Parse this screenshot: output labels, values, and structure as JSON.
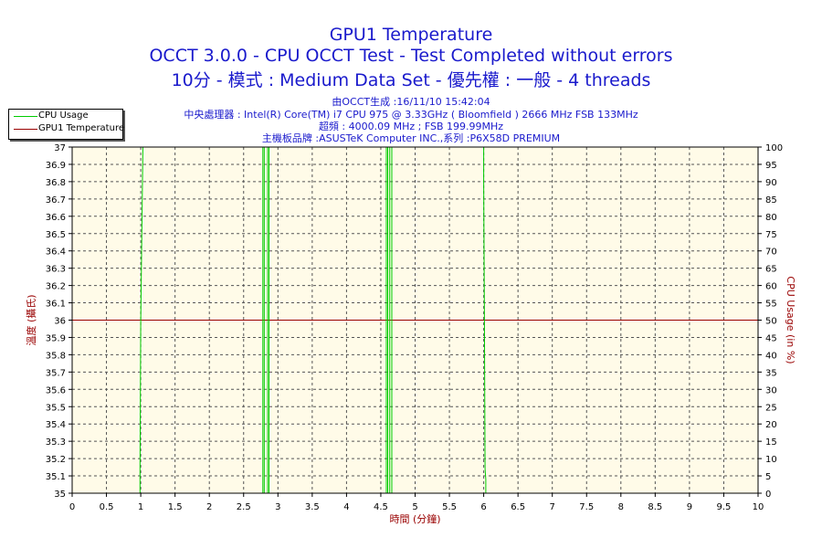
{
  "header": {
    "title": "GPU1 Temperature",
    "subtitle1": "OCCT 3.0.0 - CPU OCCT Test - Test Completed without errors",
    "subtitle2": "10分 - 模式 : Medium Data Set - 優先權 : 一般 - 4 threads",
    "info1": "由OCCT生成 :16/11/10 15:42:04",
    "info2": "中央處理器 : Intel(R) Core(TM) i7 CPU 975 @ 3.33GHz ( Bloomfield ) 2666 MHz FSB 133MHz",
    "info3": "超頻 : 4000.09 MHz ; FSB 199.99MHz",
    "info4": "主機板品牌 :ASUSTeK Computer INC.,系列 :P6X58D PREMIUM"
  },
  "legend": {
    "items": [
      {
        "label": "CPU Usage",
        "color": "#00cc00"
      },
      {
        "label": "GPU1 Temperature",
        "color": "#990000"
      }
    ]
  },
  "chart_data": {
    "type": "line",
    "xlabel": "時間 (分鐘)",
    "ylabel": "溫度 (攝氏)",
    "y2label": "CPU Usage (in %)",
    "xlim": [
      0,
      10
    ],
    "ylim": [
      35,
      37
    ],
    "y2lim": [
      0,
      100
    ],
    "x_ticks": [
      "0",
      "0.5",
      "1",
      "1.5",
      "2",
      "2.5",
      "3",
      "3.5",
      "4",
      "4.5",
      "5",
      "5.5",
      "6",
      "6.5",
      "7",
      "7.5",
      "8",
      "8.5",
      "9",
      "9.5",
      "10"
    ],
    "y_ticks": [
      "35",
      "35.1",
      "35.2",
      "35.3",
      "35.4",
      "35.5",
      "35.6",
      "35.7",
      "35.8",
      "35.9",
      "36",
      "36.1",
      "36.2",
      "36.3",
      "36.4",
      "36.5",
      "36.6",
      "36.7",
      "36.8",
      "36.9",
      "37"
    ],
    "y2_ticks": [
      "0",
      "5",
      "10",
      "15",
      "20",
      "25",
      "30",
      "35",
      "40",
      "45",
      "50",
      "55",
      "60",
      "65",
      "70",
      "75",
      "80",
      "85",
      "90",
      "95",
      "100"
    ],
    "grid": true,
    "legend_position": "top-left",
    "plot_background": "#fffbe8",
    "series": [
      {
        "name": "GPU1 Temperature",
        "axis": "left",
        "color": "#990000",
        "x": [
          0,
          10
        ],
        "y": [
          36,
          36
        ]
      },
      {
        "name": "CPU Usage",
        "axis": "right",
        "color": "#00cc00",
        "x": [
          0,
          0.99,
          0.99,
          1.0,
          1.03,
          1.03,
          2.78,
          2.78,
          2.8,
          2.8,
          2.85,
          2.85,
          2.87,
          2.87,
          4.58,
          4.58,
          4.6,
          4.6,
          4.63,
          4.63,
          4.66,
          4.66,
          6.0,
          6.0,
          6.01,
          6.02,
          6.03,
          6.03,
          10
        ],
        "y": [
          0,
          0,
          7,
          50,
          99,
          100,
          100,
          0,
          0,
          100,
          100,
          0,
          0,
          100,
          100,
          0,
          0,
          100,
          100,
          0,
          0,
          100,
          100,
          90,
          50,
          7,
          4,
          0,
          0
        ]
      }
    ]
  }
}
